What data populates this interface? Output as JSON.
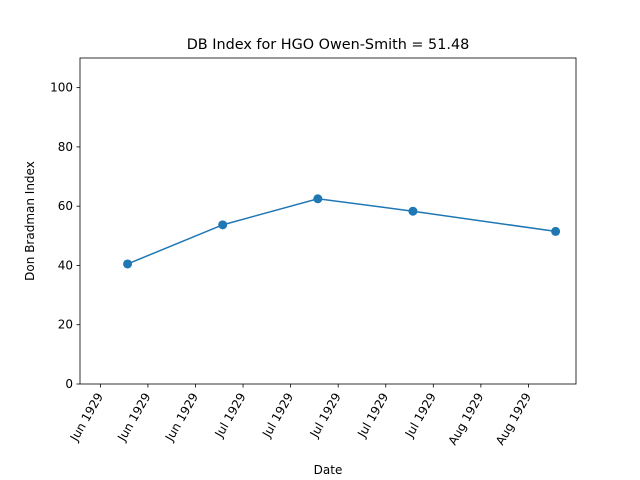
{
  "chart_data": {
    "type": "line",
    "title": "DB Index for HGO Owen-Smith = 51.48",
    "xlabel": "Date",
    "ylabel": "Don Bradman Index",
    "x": [
      "1929-06-15",
      "1929-06-29",
      "1929-07-13",
      "1929-07-27",
      "1929-08-17"
    ],
    "series": [
      {
        "values": [
          40.5,
          53.7,
          62.5,
          58.3,
          51.48
        ],
        "color": "#1f77b4",
        "marker": "circle"
      }
    ],
    "xlim": [
      "1929-06-08",
      "1929-08-20"
    ],
    "ylim": [
      0,
      110
    ],
    "yticks": [
      0,
      20,
      40,
      60,
      80,
      100
    ],
    "xticks": [
      {
        "date": "1929-06-11",
        "label": "Jun 1929"
      },
      {
        "date": "1929-06-18",
        "label": "Jun 1929"
      },
      {
        "date": "1929-06-25",
        "label": "Jun 1929"
      },
      {
        "date": "1929-07-02",
        "label": "Jul 1929"
      },
      {
        "date": "1929-07-09",
        "label": "Jul 1929"
      },
      {
        "date": "1929-07-16",
        "label": "Jul 1929"
      },
      {
        "date": "1929-07-23",
        "label": "Jul 1929"
      },
      {
        "date": "1929-07-30",
        "label": "Jul 1929"
      },
      {
        "date": "1929-08-06",
        "label": "Aug 1929"
      },
      {
        "date": "1929-08-13",
        "label": "Aug 1929"
      }
    ],
    "grid": false,
    "legend": "none"
  }
}
